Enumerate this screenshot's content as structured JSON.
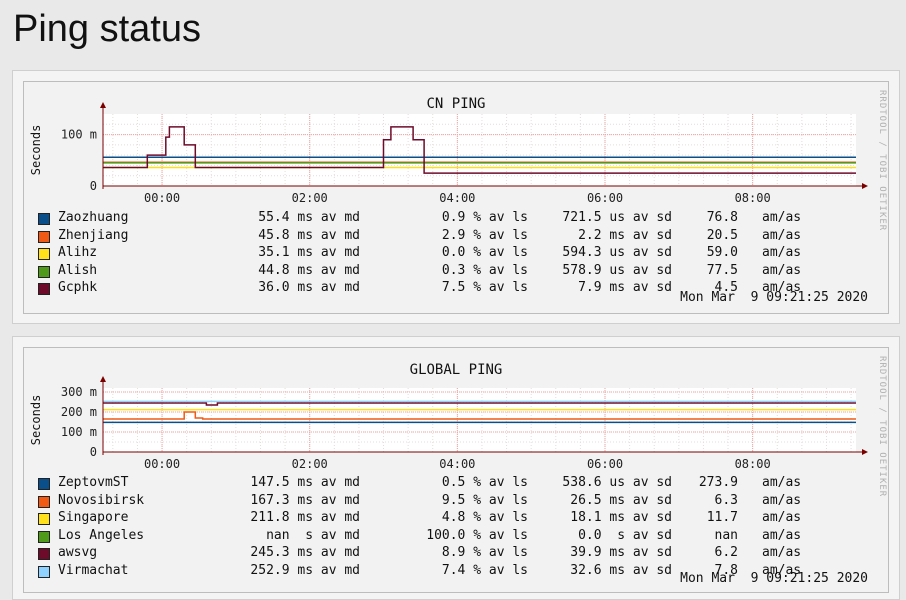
{
  "page": {
    "title": "Ping status"
  },
  "graphs": [
    {
      "rrd_credit": "RRDTOOL / TOBI OETIKER",
      "timestamp": "Mon Mar  9 09:21:25 2020",
      "legend": [
        {
          "name": "Zaozhuang",
          "avg": "55.4 ms av md",
          "loss": "0.9 % av ls",
          "sd": "721.5 us av sd",
          "ratio": "76.8",
          "unit": "am/as",
          "color": "#0b4f8a"
        },
        {
          "name": "Zhenjiang",
          "avg": "45.8 ms av md",
          "loss": "2.9 % av ls",
          "sd": "2.2 ms av sd",
          "ratio": "20.5",
          "unit": "am/as",
          "color": "#f05a14"
        },
        {
          "name": "Alihz",
          "avg": "35.1 ms av md",
          "loss": "0.0 % av ls",
          "sd": "594.3 us av sd",
          "ratio": "59.0",
          "unit": "am/as",
          "color": "#ffe01a"
        },
        {
          "name": "Alish",
          "avg": "44.8 ms av md",
          "loss": "0.3 % av ls",
          "sd": "578.9 us av sd",
          "ratio": "77.5",
          "unit": "am/as",
          "color": "#4f9a18"
        },
        {
          "name": "Gcphk",
          "avg": "36.0 ms av md",
          "loss": "7.5 % av ls",
          "sd": "7.9 ms av sd",
          "ratio": "4.5",
          "unit": "am/as",
          "color": "#6e0a2a"
        }
      ]
    },
    {
      "rrd_credit": "RRDTOOL / TOBI OETIKER",
      "timestamp": "Mon Mar  9 09:21:25 2020",
      "legend": [
        {
          "name": "ZeptovmST",
          "avg": "147.5 ms av md",
          "loss": "0.5 % av ls",
          "sd": "538.6 us av sd",
          "ratio": "273.9",
          "unit": "am/as",
          "color": "#0b4f8a"
        },
        {
          "name": "Novosibirsk",
          "avg": "167.3 ms av md",
          "loss": "9.5 % av ls",
          "sd": "26.5 ms av sd",
          "ratio": "6.3",
          "unit": "am/as",
          "color": "#f05a14"
        },
        {
          "name": "Singapore",
          "avg": "211.8 ms av md",
          "loss": "4.8 % av ls",
          "sd": "18.1 ms av sd",
          "ratio": "11.7",
          "unit": "am/as",
          "color": "#ffe01a"
        },
        {
          "name": "Los Angeles",
          "avg": "nan  s av md",
          "loss": "100.0 % av ls",
          "sd": "0.0  s av sd",
          "ratio": "nan",
          "unit": "am/as",
          "color": "#4f9a18"
        },
        {
          "name": "awsvg",
          "avg": "245.3 ms av md",
          "loss": "8.9 % av ls",
          "sd": "39.9 ms av sd",
          "ratio": "6.2",
          "unit": "am/as",
          "color": "#6e0a2a"
        },
        {
          "name": "Virmachat",
          "avg": "252.9 ms av md",
          "loss": "7.4 % av ls",
          "sd": "32.6 ms av sd",
          "ratio": "7.8",
          "unit": "am/as",
          "color": "#8fd1ff"
        }
      ]
    }
  ],
  "chart_data": [
    {
      "type": "line",
      "title": "CN PING",
      "ylabel": "Seconds",
      "y_unit": "ms",
      "ylim": [
        0,
        140
      ],
      "y_ticks": [
        {
          "value": 0,
          "label": "0"
        },
        {
          "value": 100,
          "label": "100 m"
        }
      ],
      "xlim": [
        -0.8,
        9.4
      ],
      "x_ticks": [
        {
          "value": 0,
          "label": "00:00"
        },
        {
          "value": 2,
          "label": "02:00"
        },
        {
          "value": 4,
          "label": "04:00"
        },
        {
          "value": 6,
          "label": "06:00"
        },
        {
          "value": 8,
          "label": "08:00"
        }
      ],
      "grid": true,
      "series": [
        {
          "name": "Zaozhuang",
          "color": "#0b4f8a",
          "x": [
            -0.8,
            9.4
          ],
          "y": [
            56,
            56
          ]
        },
        {
          "name": "Zhenjiang",
          "color": "#f05a14",
          "x": [
            -0.8,
            9.4
          ],
          "y": [
            46,
            46
          ]
        },
        {
          "name": "Alihz",
          "color": "#ffe01a",
          "x": [
            -0.8,
            9.4
          ],
          "y": [
            36,
            36
          ]
        },
        {
          "name": "Alish",
          "color": "#4f9a18",
          "x": [
            -0.8,
            9.4
          ],
          "y": [
            45,
            45
          ]
        },
        {
          "name": "Gcphk",
          "color": "#6e0a2a",
          "x": [
            -0.8,
            -0.2,
            -0.2,
            0.05,
            0.05,
            0.1,
            0.1,
            0.3,
            0.3,
            0.45,
            0.45,
            3.0,
            3.0,
            3.1,
            3.1,
            3.4,
            3.4,
            3.55,
            3.55,
            9.4
          ],
          "y": [
            36,
            36,
            60,
            60,
            95,
            95,
            115,
            115,
            80,
            80,
            36,
            36,
            90,
            90,
            115,
            115,
            90,
            90,
            25,
            25
          ]
        }
      ]
    },
    {
      "type": "line",
      "title": "GLOBAL PING",
      "ylabel": "Seconds",
      "y_unit": "ms",
      "ylim": [
        0,
        320
      ],
      "y_ticks": [
        {
          "value": 0,
          "label": "0"
        },
        {
          "value": 100,
          "label": "100 m"
        },
        {
          "value": 200,
          "label": "200 m"
        },
        {
          "value": 300,
          "label": "300 m"
        }
      ],
      "xlim": [
        -0.8,
        9.4
      ],
      "x_ticks": [
        {
          "value": 0,
          "label": "00:00"
        },
        {
          "value": 2,
          "label": "02:00"
        },
        {
          "value": 4,
          "label": "04:00"
        },
        {
          "value": 6,
          "label": "06:00"
        },
        {
          "value": 8,
          "label": "08:00"
        }
      ],
      "grid": true,
      "series": [
        {
          "name": "ZeptovmST",
          "color": "#0b4f8a",
          "x": [
            -0.8,
            9.4
          ],
          "y": [
            148,
            148
          ]
        },
        {
          "name": "Novosibirsk",
          "color": "#f05a14",
          "x": [
            -0.8,
            0.3,
            0.3,
            0.45,
            0.45,
            0.55,
            0.55,
            9.4
          ],
          "y": [
            165,
            165,
            200,
            200,
            170,
            170,
            165,
            165
          ]
        },
        {
          "name": "Singapore",
          "color": "#ffe01a",
          "x": [
            -0.8,
            9.4
          ],
          "y": [
            212,
            212
          ]
        },
        {
          "name": "Los Angeles",
          "color": "#4f9a18",
          "x": [],
          "y": []
        },
        {
          "name": "awsvg",
          "color": "#6e0a2a",
          "x": [
            -0.8,
            0.6,
            0.6,
            0.75,
            0.75,
            9.4
          ],
          "y": [
            245,
            245,
            235,
            235,
            245,
            245
          ]
        },
        {
          "name": "Virmachat",
          "color": "#8fd1ff",
          "x": [
            -0.8,
            9.4
          ],
          "y": [
            253,
            253
          ]
        }
      ]
    }
  ]
}
